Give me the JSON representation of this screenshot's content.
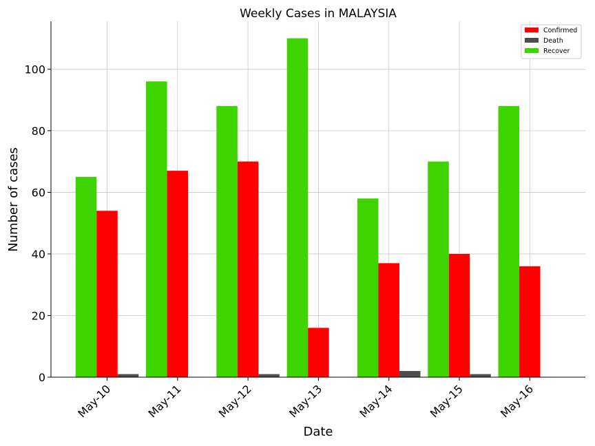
{
  "chart_data": {
    "type": "bar",
    "title": "Weekly Cases in MALAYSIA",
    "xlabel": "Date",
    "ylabel": "Number of cases",
    "categories": [
      "May-10",
      "May-11",
      "May-12",
      "May-13",
      "May-14",
      "May-15",
      "May-16"
    ],
    "series": [
      {
        "name": "Recover",
        "color": "#3dd400",
        "values": [
          65,
          96,
          88,
          110,
          58,
          70,
          88
        ]
      },
      {
        "name": "Confirmed",
        "color": "#ff0000",
        "values": [
          54,
          67,
          70,
          16,
          37,
          40,
          36
        ]
      },
      {
        "name": "Death",
        "color": "#4d4d4d",
        "values": [
          1,
          0,
          1,
          0,
          2,
          1,
          0
        ]
      }
    ],
    "legend_order": [
      "Confirmed",
      "Death",
      "Recover"
    ],
    "ylim": [
      0,
      115.5
    ],
    "yticks": [
      0,
      20,
      40,
      60,
      80,
      100
    ],
    "grid": true,
    "legend_position": "top-right"
  }
}
